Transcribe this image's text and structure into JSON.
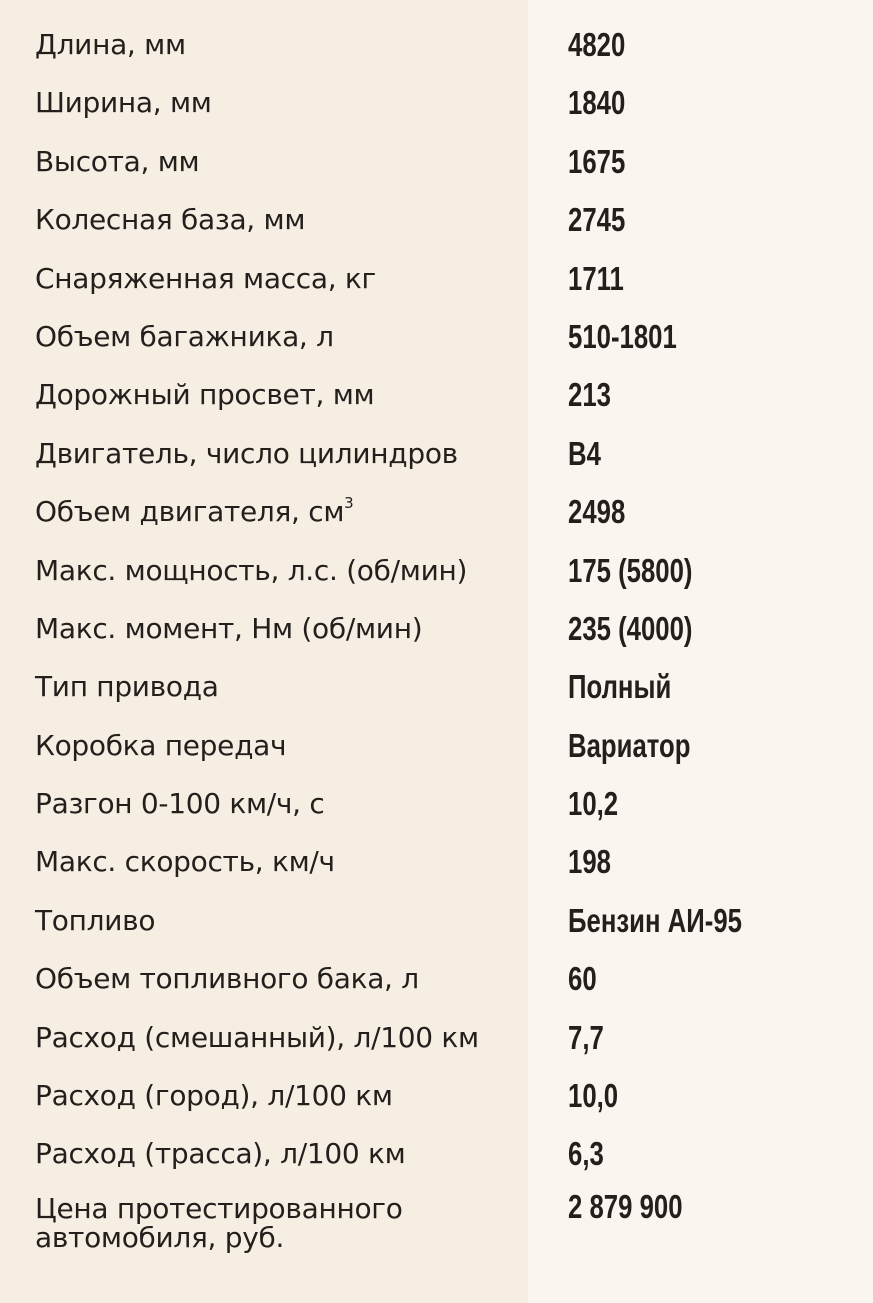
{
  "specs": [
    {
      "label": "Длина, мм",
      "value": "4820"
    },
    {
      "label": "Ширина, мм",
      "value": "1840"
    },
    {
      "label": "Высота, мм",
      "value": "1675"
    },
    {
      "label": "Колесная база, мм",
      "value": "2745"
    },
    {
      "label": "Снаряженная масса, кг",
      "value": "1711"
    },
    {
      "label": "Объем багажника, л",
      "value": "510-1801"
    },
    {
      "label": "Дорожный просвет, мм",
      "value": "213"
    },
    {
      "label": "Двигатель, число цилиндров",
      "value": "B4"
    },
    {
      "label": "Объем двигателя, см",
      "sup": "3",
      "value": "2498"
    },
    {
      "label": "Макс. мощность, л.с. (об/мин)",
      "value": "175 (5800)"
    },
    {
      "label": "Макс. момент, Нм (об/мин)",
      "value": "235 (4000)"
    },
    {
      "label": "Тип привода",
      "value": "Полный"
    },
    {
      "label": "Коробка передач",
      "value": "Вариатор"
    },
    {
      "label": "Разгон 0-100 км/ч, с",
      "value": "10,2"
    },
    {
      "label": "Макс. скорость, км/ч",
      "value": "198"
    },
    {
      "label": "Топливо",
      "value": "Бензин АИ-95"
    },
    {
      "label": "Объем топливного бака, л",
      "value": "60"
    },
    {
      "label": "Расход (смешанный), л/100 км",
      "value": "7,7"
    },
    {
      "label": "Расход (город), л/100 км",
      "value": "10,0"
    },
    {
      "label": "Расход (трасса), л/100 км",
      "value": "6,3"
    },
    {
      "label": "Цена протестированного автомобиля, руб.",
      "value": "2 879 900"
    }
  ],
  "colors": {
    "left_bg": "#f6eee3",
    "right_bg": "#faf5ef",
    "text": "#231f1c"
  }
}
